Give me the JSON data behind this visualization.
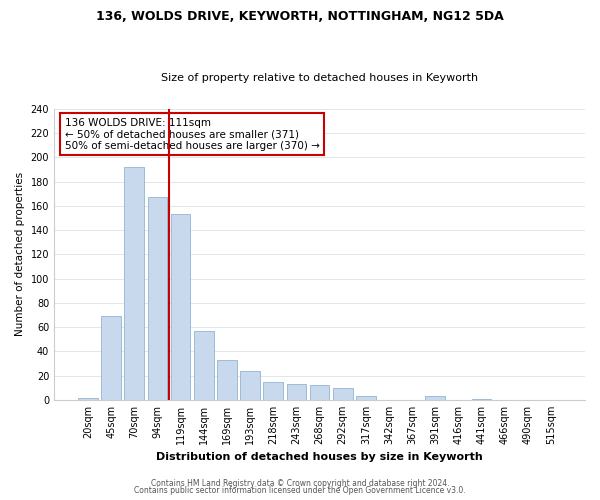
{
  "title": "136, WOLDS DRIVE, KEYWORTH, NOTTINGHAM, NG12 5DA",
  "subtitle": "Size of property relative to detached houses in Keyworth",
  "xlabel": "Distribution of detached houses by size in Keyworth",
  "ylabel": "Number of detached properties",
  "bar_labels": [
    "20sqm",
    "45sqm",
    "70sqm",
    "94sqm",
    "119sqm",
    "144sqm",
    "169sqm",
    "193sqm",
    "218sqm",
    "243sqm",
    "268sqm",
    "292sqm",
    "317sqm",
    "342sqm",
    "367sqm",
    "391sqm",
    "416sqm",
    "441sqm",
    "466sqm",
    "490sqm",
    "515sqm"
  ],
  "bar_values": [
    2,
    69,
    192,
    167,
    153,
    57,
    33,
    24,
    15,
    13,
    12,
    10,
    3,
    0,
    0,
    3,
    0,
    1,
    0,
    0,
    0
  ],
  "bar_color": "#c8d9ee",
  "bar_edge_color": "#92b4d4",
  "vline_color": "#cc0000",
  "annotation_text": "136 WOLDS DRIVE: 111sqm\n← 50% of detached houses are smaller (371)\n50% of semi-detached houses are larger (370) →",
  "annotation_box_color": "white",
  "annotation_box_edge_color": "#cc0000",
  "ylim": [
    0,
    240
  ],
  "yticks": [
    0,
    20,
    40,
    60,
    80,
    100,
    120,
    140,
    160,
    180,
    200,
    220,
    240
  ],
  "footer1": "Contains HM Land Registry data © Crown copyright and database right 2024.",
  "footer2": "Contains public sector information licensed under the Open Government Licence v3.0.",
  "background_color": "#ffffff",
  "grid_color": "#dde6f0",
  "title_fontsize": 9,
  "subtitle_fontsize": 8,
  "xlabel_fontsize": 8,
  "ylabel_fontsize": 7.5,
  "tick_fontsize": 7,
  "annotation_fontsize": 7.5,
  "footer_fontsize": 5.5
}
